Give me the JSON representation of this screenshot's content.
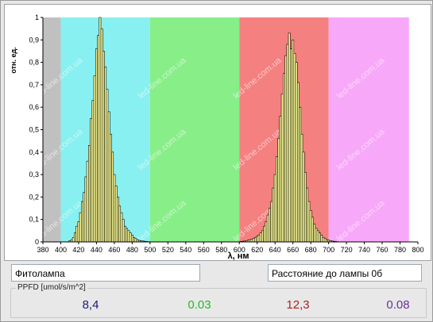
{
  "lamp_name": "Фитолампа",
  "distance_label": "Расстояние до лампы 0б",
  "ppfd": {
    "label": "PPFD [umol/s/m^2]",
    "values": [
      {
        "text": "8,4",
        "color": "#1a1a7a"
      },
      {
        "text": "0.03",
        "color": "#22bb22"
      },
      {
        "text": "12,3",
        "color": "#aa2222"
      },
      {
        "text": "0.08",
        "color": "#663399"
      }
    ]
  },
  "watermark": "led-line.com.ua",
  "chart_data": {
    "type": "bar",
    "xlabel": "λ, нм",
    "ylabel": "отн. ед.",
    "xlim": [
      380,
      800
    ],
    "ylim": [
      0,
      1
    ],
    "x_ticks": [
      380,
      400,
      420,
      440,
      460,
      480,
      500,
      520,
      540,
      560,
      580,
      600,
      620,
      640,
      660,
      680,
      700,
      720,
      740,
      760,
      780,
      800
    ],
    "y_ticks": [
      "0",
      "0,1",
      "0,2",
      "0,3",
      "0,4",
      "0,5",
      "0,6",
      "0,7",
      "0,8",
      "0,9",
      "1"
    ],
    "bands": [
      {
        "from": 380,
        "to": 400,
        "color": "#c0c0c0"
      },
      {
        "from": 400,
        "to": 500,
        "color": "#88f0f0"
      },
      {
        "from": 500,
        "to": 600,
        "color": "#88ee88"
      },
      {
        "from": 600,
        "to": 700,
        "color": "#f58080"
      },
      {
        "from": 700,
        "to": 790,
        "color": "#f8a8f8"
      }
    ],
    "bar_color": "#ffff99",
    "series": [
      {
        "x": [
          410,
          412,
          414,
          416,
          418,
          420,
          422,
          424,
          426,
          428,
          430,
          432,
          434,
          436,
          438,
          440,
          442,
          444,
          446,
          448,
          450,
          452,
          454,
          456,
          458,
          460,
          462,
          464,
          466,
          468,
          470,
          472,
          474,
          476,
          478,
          480,
          482,
          484,
          486,
          488,
          490,
          492,
          494,
          496,
          498,
          500
        ],
        "values": [
          0.005,
          0.008,
          0.02,
          0.04,
          0.07,
          0.09,
          0.13,
          0.18,
          0.22,
          0.29,
          0.36,
          0.43,
          0.55,
          0.63,
          0.74,
          0.86,
          0.92,
          1.0,
          0.95,
          0.85,
          0.78,
          0.68,
          0.58,
          0.48,
          0.4,
          0.3,
          0.25,
          0.2,
          0.16,
          0.13,
          0.1,
          0.07,
          0.06,
          0.05,
          0.04,
          0.03,
          0.02,
          0.015,
          0.01,
          0.007,
          0.005,
          0.004,
          0.003,
          0.002,
          0.001,
          0.001
        ]
      },
      {
        "x": [
          600,
          602,
          604,
          606,
          608,
          610,
          612,
          614,
          616,
          618,
          620,
          622,
          624,
          626,
          628,
          630,
          632,
          634,
          636,
          638,
          640,
          642,
          644,
          646,
          648,
          650,
          652,
          654,
          656,
          658,
          660,
          662,
          664,
          666,
          668,
          670,
          672,
          674,
          676,
          678,
          680,
          682,
          684,
          686,
          688,
          690,
          692,
          694,
          696,
          698,
          700,
          702,
          704,
          706,
          708,
          710
        ],
        "values": [
          0.001,
          0.002,
          0.003,
          0.004,
          0.006,
          0.008,
          0.01,
          0.012,
          0.015,
          0.02,
          0.025,
          0.03,
          0.04,
          0.05,
          0.07,
          0.09,
          0.12,
          0.15,
          0.18,
          0.24,
          0.3,
          0.38,
          0.46,
          0.56,
          0.66,
          0.75,
          0.83,
          0.88,
          0.93,
          0.86,
          0.9,
          0.84,
          0.8,
          0.71,
          0.6,
          0.48,
          0.4,
          0.31,
          0.24,
          0.18,
          0.14,
          0.11,
          0.08,
          0.06,
          0.05,
          0.04,
          0.03,
          0.02,
          0.015,
          0.01,
          0.008,
          0.006,
          0.004,
          0.003,
          0.002,
          0.001
        ]
      }
    ]
  }
}
